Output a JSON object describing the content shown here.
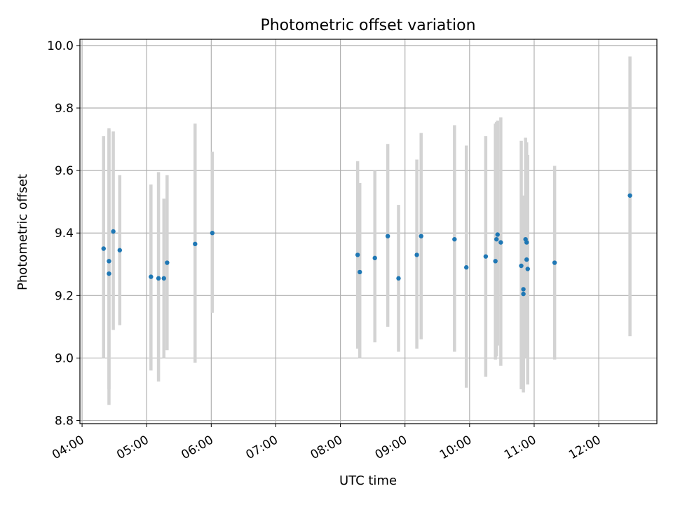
{
  "chart_data": {
    "type": "scatter",
    "title": "Photometric offset variation",
    "xlabel": "UTC time",
    "ylabel": "Photometric offset",
    "x_ticks": [
      "04:00",
      "05:00",
      "06:00",
      "07:00",
      "08:00",
      "09:00",
      "10:00",
      "11:00",
      "12:00"
    ],
    "y_ticks": [
      "8.8",
      "9.0",
      "9.2",
      "9.4",
      "9.6",
      "9.8",
      "10.0"
    ],
    "xlim": [
      "03:58",
      "12:54"
    ],
    "ylim": [
      8.79,
      10.02
    ],
    "grid": true,
    "colors": {
      "point": "#1f77b4",
      "errorbar": "#d3d3d3",
      "grid": "#b0b0b0"
    },
    "points": [
      {
        "x": "04:20",
        "y": 9.35,
        "ylow": 9.0,
        "yhigh": 9.71
      },
      {
        "x": "04:25",
        "y": 9.31,
        "ylow": 8.85,
        "yhigh": 9.735
      },
      {
        "x": "04:25",
        "y": 9.27,
        "ylow": 8.9,
        "yhigh": 9.73
      },
      {
        "x": "04:29",
        "y": 9.405,
        "ylow": 9.09,
        "yhigh": 9.725
      },
      {
        "x": "04:35",
        "y": 9.345,
        "ylow": 9.105,
        "yhigh": 9.585
      },
      {
        "x": "05:04",
        "y": 9.26,
        "ylow": 8.96,
        "yhigh": 9.555
      },
      {
        "x": "05:11",
        "y": 9.255,
        "ylow": 8.925,
        "yhigh": 9.595
      },
      {
        "x": "05:16",
        "y": 9.255,
        "ylow": 9.0,
        "yhigh": 9.51
      },
      {
        "x": "05:19",
        "y": 9.305,
        "ylow": 9.025,
        "yhigh": 9.585
      },
      {
        "x": "05:45",
        "y": 9.365,
        "ylow": 8.985,
        "yhigh": 9.75
      },
      {
        "x": "06:01",
        "y": 9.4,
        "ylow": 9.145,
        "yhigh": 9.66
      },
      {
        "x": "08:16",
        "y": 9.33,
        "ylow": 9.03,
        "yhigh": 9.63
      },
      {
        "x": "08:18",
        "y": 9.275,
        "ylow": 9.0,
        "yhigh": 9.56
      },
      {
        "x": "08:32",
        "y": 9.32,
        "ylow": 9.05,
        "yhigh": 9.6
      },
      {
        "x": "08:44",
        "y": 9.39,
        "ylow": 9.1,
        "yhigh": 9.685
      },
      {
        "x": "08:54",
        "y": 9.255,
        "ylow": 9.02,
        "yhigh": 9.49
      },
      {
        "x": "09:11",
        "y": 9.33,
        "ylow": 9.03,
        "yhigh": 9.635
      },
      {
        "x": "09:15",
        "y": 9.39,
        "ylow": 9.06,
        "yhigh": 9.72
      },
      {
        "x": "09:46",
        "y": 9.38,
        "ylow": 9.02,
        "yhigh": 9.745
      },
      {
        "x": "09:57",
        "y": 9.29,
        "ylow": 8.905,
        "yhigh": 9.68
      },
      {
        "x": "10:15",
        "y": 9.325,
        "ylow": 8.94,
        "yhigh": 9.71
      },
      {
        "x": "10:24",
        "y": 9.31,
        "ylow": 8.995,
        "yhigh": 9.75
      },
      {
        "x": "10:25",
        "y": 9.38,
        "ylow": 9.005,
        "yhigh": 9.755
      },
      {
        "x": "10:26",
        "y": 9.395,
        "ylow": 9.04,
        "yhigh": 9.76
      },
      {
        "x": "10:29",
        "y": 9.37,
        "ylow": 8.975,
        "yhigh": 9.77
      },
      {
        "x": "10:48",
        "y": 9.295,
        "ylow": 8.9,
        "yhigh": 9.695
      },
      {
        "x": "10:50",
        "y": 9.22,
        "ylow": 8.89,
        "yhigh": 9.52
      },
      {
        "x": "10:50",
        "y": 9.205,
        "ylow": 8.9,
        "yhigh": 9.5
      },
      {
        "x": "10:52",
        "y": 9.38,
        "ylow": 9.0,
        "yhigh": 9.705
      },
      {
        "x": "10:53",
        "y": 9.37,
        "ylow": 9.0,
        "yhigh": 9.69
      },
      {
        "x": "10:53",
        "y": 9.315,
        "ylow": 9.0,
        "yhigh": 9.62
      },
      {
        "x": "10:54",
        "y": 9.285,
        "ylow": 8.915,
        "yhigh": 9.65
      },
      {
        "x": "11:19",
        "y": 9.305,
        "ylow": 8.995,
        "yhigh": 9.615
      },
      {
        "x": "12:29",
        "y": 9.52,
        "ylow": 9.07,
        "yhigh": 9.965
      }
    ]
  }
}
